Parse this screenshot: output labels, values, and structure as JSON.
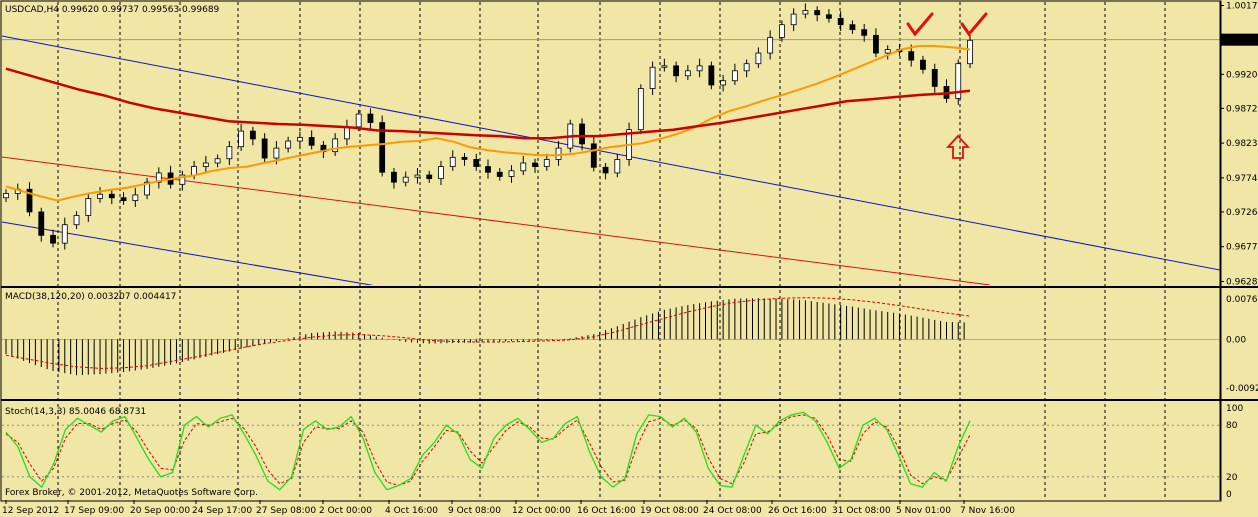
{
  "chart_data": {
    "type": "candlestick",
    "symbol_line": "USDCAD,H4  0.99620 0.99737 0.99563 0.99689",
    "price_axis": {
      "ticks": [
        "1.00170",
        "0.99200",
        "0.98720",
        "0.98230",
        "0.97740",
        "0.97260",
        "0.96770",
        "0.96280"
      ],
      "tick_values": [
        1.0017,
        0.992,
        0.9872,
        0.9823,
        0.9774,
        0.9726,
        0.9677,
        0.9628
      ],
      "current_price": "0.99689",
      "current_value": 0.99689,
      "ylim": [
        0.9623,
        1.0022
      ]
    },
    "time_axis": {
      "labels": [
        "12 Sep 2012",
        "17 Sep 09:00",
        "20 Sep 00:00",
        "24 Sep 17:00",
        "27 Sep 08:00",
        "2 Oct 00:00",
        "4 Oct 16:00",
        "9 Oct 08:00",
        "12 Oct 00:00",
        "16 Oct 16:00",
        "19 Oct 08:00",
        "24 Oct 08:00",
        "26 Oct 16:00",
        "31 Oct 08:00",
        "5 Nov 01:00",
        "7 Nov 16:00"
      ]
    },
    "price_closes": [
      0.9752,
      0.9758,
      0.9726,
      0.9693,
      0.9682,
      0.9708,
      0.9721,
      0.9745,
      0.9751,
      0.9746,
      0.9742,
      0.975,
      0.9768,
      0.9781,
      0.9765,
      0.9778,
      0.979,
      0.9795,
      0.9801,
      0.9818,
      0.984,
      0.9829,
      0.9802,
      0.9816,
      0.9826,
      0.9831,
      0.982,
      0.9811,
      0.9829,
      0.9846,
      0.9864,
      0.9852,
      0.9782,
      0.9768,
      0.9775,
      0.9778,
      0.9773,
      0.979,
      0.9803,
      0.98,
      0.979,
      0.9782,
      0.9776,
      0.9784,
      0.9795,
      0.979,
      0.98,
      0.9816,
      0.985,
      0.9822,
      0.9789,
      0.9781,
      0.98,
      0.9842,
      0.99,
      0.993,
      0.9932,
      0.9918,
      0.9925,
      0.9932,
      0.9905,
      0.9911,
      0.9925,
      0.9935,
      0.995,
      0.9972,
      0.999,
      1.0005,
      1.001,
      1.0004,
      0.9999,
      0.999,
      0.9983,
      0.9975,
      0.995,
      0.9955,
      0.9952,
      0.994,
      0.9927,
      0.9903,
      0.9886,
      0.9935,
      0.9968
    ],
    "series": [
      {
        "name": "MA50",
        "color": "#ff9900",
        "values": [
          0.9762,
          0.9755,
          0.9748,
          0.9742,
          0.9748,
          0.9753,
          0.9757,
          0.976,
          0.9765,
          0.977,
          0.9774,
          0.9778,
          0.9784,
          0.9788,
          0.979,
          0.9795,
          0.98,
          0.9805,
          0.981,
          0.9815,
          0.9818,
          0.982,
          0.9822,
          0.9825,
          0.9826,
          0.983,
          0.9825,
          0.9817,
          0.9813,
          0.981,
          0.9808,
          0.9806,
          0.9806,
          0.9808,
          0.9812,
          0.9817,
          0.982,
          0.9823,
          0.9829,
          0.9836,
          0.9845,
          0.9858,
          0.9868,
          0.9875,
          0.9883,
          0.989,
          0.9898,
          0.9906,
          0.9915,
          0.9925,
          0.9935,
          0.9945,
          0.9955,
          0.996,
          0.996,
          0.9958,
          0.9955
        ]
      },
      {
        "name": "MA200",
        "color": "#cc0000",
        "values": [
          0.9928,
          0.9918,
          0.9908,
          0.9898,
          0.989,
          0.988,
          0.9872,
          0.9866,
          0.986,
          0.9854,
          0.9852,
          0.985,
          0.9849,
          0.9847,
          0.9845,
          0.9841,
          0.984,
          0.9838,
          0.9836,
          0.9834,
          0.9833,
          0.983,
          0.983,
          0.9833,
          0.9833,
          0.9836,
          0.9839,
          0.9842,
          0.9847,
          0.9852,
          0.9858,
          0.9864,
          0.987,
          0.9876,
          0.9882,
          0.9885,
          0.9888,
          0.9891,
          0.9893,
          0.9897
        ]
      }
    ],
    "macd": {
      "label": "MACD(38,120,20) 0.003207 0.004417",
      "ticks": [
        "0.00765",
        "0.00",
        "-0.00922"
      ],
      "tick_values": [
        0.00765,
        0,
        -0.00922
      ],
      "histogram": [
        -0.0028,
        -0.0045,
        -0.006,
        -0.0068,
        -0.0066,
        -0.0062,
        -0.0056,
        -0.0048,
        -0.0038,
        -0.0028,
        -0.0018,
        -0.0008,
        0.0002,
        0.0012,
        0.0015,
        0.0012,
        0.0003,
        -0.0005,
        -0.0008,
        -0.0007,
        -0.0006,
        -0.0004,
        -0.0003,
        -0.0002,
        0.0002,
        0.001,
        0.0025,
        0.0042,
        0.0056,
        0.0065,
        0.0072,
        0.0077,
        0.0078,
        0.0077,
        0.0074,
        0.0068,
        0.0062,
        0.0055,
        0.0049,
        0.0041,
        0.0033,
        0.0032
      ],
      "signal": [
        -0.003,
        -0.0038,
        -0.0046,
        -0.0052,
        -0.0055,
        -0.0054,
        -0.005,
        -0.0042,
        -0.0034,
        -0.0025,
        -0.0016,
        -0.0008,
        -0.0002,
        0.0004,
        0.0008,
        0.0009,
        0.0007,
        0.0003,
        -0.0002,
        -0.0004,
        -0.0005,
        -0.0005,
        -0.0004,
        -0.0003,
        -0.0001,
        0.0005,
        0.0015,
        0.0028,
        0.004,
        0.0052,
        0.0062,
        0.007,
        0.0075,
        0.0078,
        0.0079,
        0.0078,
        0.0075,
        0.007,
        0.0064,
        0.0057,
        0.005,
        0.0044
      ]
    },
    "stochastic": {
      "label": "Stoch(14,3,3) 85.0046 68.8731",
      "ticks": [
        "100",
        "80",
        "20",
        "0"
      ],
      "tick_values": [
        100,
        80,
        20,
        0
      ],
      "main": [
        72,
        55,
        20,
        8,
        35,
        75,
        88,
        80,
        72,
        85,
        90,
        65,
        40,
        20,
        25,
        80,
        90,
        78,
        88,
        92,
        70,
        45,
        15,
        5,
        20,
        75,
        85,
        75,
        78,
        90,
        65,
        25,
        5,
        10,
        18,
        45,
        60,
        80,
        70,
        40,
        30,
        65,
        80,
        88,
        75,
        60,
        65,
        82,
        90,
        50,
        20,
        8,
        18,
        70,
        92,
        90,
        78,
        88,
        72,
        30,
        10,
        8,
        45,
        80,
        70,
        85,
        92,
        95,
        85,
        60,
        30,
        40,
        80,
        88,
        75,
        45,
        12,
        8,
        25,
        15,
        55,
        85
      ],
      "signal": [
        70,
        60,
        35,
        15,
        30,
        65,
        82,
        82,
        75,
        82,
        86,
        72,
        50,
        30,
        28,
        62,
        82,
        80,
        84,
        88,
        76,
        55,
        28,
        12,
        18,
        60,
        78,
        76,
        76,
        85,
        72,
        38,
        14,
        10,
        15,
        38,
        55,
        74,
        72,
        50,
        36,
        55,
        74,
        84,
        78,
        65,
        64,
        76,
        86,
        60,
        32,
        14,
        16,
        55,
        84,
        88,
        80,
        86,
        76,
        42,
        18,
        12,
        36,
        70,
        72,
        82,
        90,
        92,
        88,
        68,
        40,
        38,
        70,
        84,
        78,
        54,
        22,
        12,
        20,
        16,
        42,
        69
      ]
    },
    "annotations": [
      "Forex Broker, © 2001-2012, MetaQuotes Software Corp."
    ]
  }
}
